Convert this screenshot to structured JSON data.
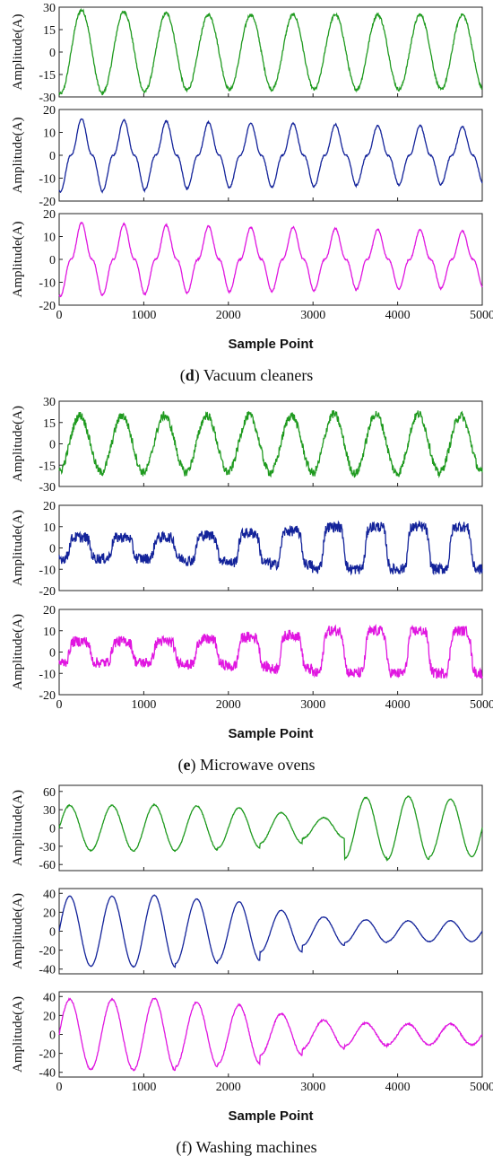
{
  "chart_data": [
    {
      "type": "line",
      "group_caption": {
        "letter": "d",
        "text": "Vacuum cleaners"
      },
      "xlabel": "Sample Point",
      "xlim": [
        0,
        5000
      ],
      "xticks": [
        "0",
        "1000",
        "2000",
        "3000",
        "4000",
        "5000"
      ],
      "panels": [
        {
          "ylabel": "Amplitude(A)",
          "ylim": [
            -30,
            30
          ],
          "yticks": [
            "30",
            "15",
            "0",
            "-15",
            "-30"
          ],
          "color": "#1f9a1f",
          "series": {
            "period": 500,
            "amplitudes": [
              28,
              27,
              26,
              25,
              25,
              25,
              25,
              25,
              25,
              25
            ],
            "shape": "sine",
            "noise": 1.0,
            "phase": 140
          }
        },
        {
          "ylabel": "Amplitude(A)",
          "ylim": [
            -20,
            20
          ],
          "yticks": [
            "20",
            "10",
            "0",
            "-10",
            "-20"
          ],
          "color": "#13239a",
          "series": {
            "period": 500,
            "amplitudes": [
              16,
              15.5,
              15,
              14.5,
              14,
              14,
              13.5,
              13,
              13,
              12.5
            ],
            "shape": "peaky",
            "noise": 0.3,
            "phase": 140
          }
        },
        {
          "ylabel": "Amplitude(A)",
          "ylim": [
            -20,
            20
          ],
          "yticks": [
            "20",
            "10",
            "0",
            "-10",
            "-20"
          ],
          "color": "#e016e0",
          "series": {
            "period": 500,
            "amplitudes": [
              16,
              15.5,
              15,
              14.5,
              14,
              14,
              13.5,
              13,
              13,
              12.5
            ],
            "shape": "peaky",
            "noise": 0.3,
            "phase": 140
          }
        }
      ]
    },
    {
      "type": "line",
      "group_caption": {
        "letter": "e",
        "text": "Microwave ovens"
      },
      "xlabel": "Sample Point",
      "xlim": [
        0,
        5000
      ],
      "xticks": [
        "0",
        "1000",
        "2000",
        "3000",
        "4000",
        "5000"
      ],
      "panels": [
        {
          "ylabel": "Amplitude(A)",
          "ylim": [
            -30,
            30
          ],
          "yticks": [
            "30",
            "15",
            "0",
            "-15",
            "-30"
          ],
          "color": "#1f9a1f",
          "series": {
            "period": 500,
            "amplitudes": [
              20,
              20,
              20,
              20,
              20,
              20,
              21,
              21,
              21,
              20
            ],
            "shape": "sine",
            "noise": 3.0,
            "phase": 120
          }
        },
        {
          "ylabel": "Amplitude(A)",
          "ylim": [
            -20,
            20
          ],
          "yticks": [
            "20",
            "10",
            "0",
            "-10",
            "-20"
          ],
          "color": "#13239a",
          "series": {
            "period": 500,
            "amplitudes": [
              5,
              5,
              5,
              6,
              7,
              8,
              10,
              10,
              10,
              10
            ],
            "shape": "square",
            "noise": 2.5,
            "phase": 120
          }
        },
        {
          "ylabel": "Amplitude(A)",
          "ylim": [
            -20,
            20
          ],
          "yticks": [
            "20",
            "10",
            "0",
            "-10",
            "-20"
          ],
          "color": "#e016e0",
          "series": {
            "period": 500,
            "amplitudes": [
              5,
              5,
              5,
              6,
              7,
              8,
              10,
              10,
              10,
              10
            ],
            "shape": "square",
            "noise": 2.5,
            "phase": 120
          }
        }
      ]
    },
    {
      "type": "line",
      "group_caption": {
        "letter": "",
        "text": "(f) Washing machines"
      },
      "xlabel": "Sample Point",
      "xlim": [
        0,
        5000
      ],
      "xticks": [
        "0",
        "1000",
        "2000",
        "3000",
        "4000",
        "5000"
      ],
      "panels": [
        {
          "ylabel": "Amplitude(A)",
          "ylim": [
            -70,
            70
          ],
          "yticks": [
            "60",
            "30",
            "0",
            "-30",
            "-60"
          ],
          "color": "#1f9a1f",
          "series": {
            "period": 500,
            "amplitudes": [
              37,
              37,
              38,
              36,
              33,
              25,
              17,
              50,
              52,
              47
            ],
            "shape": "sine",
            "noise": 0.8,
            "phase": 0
          }
        },
        {
          "ylabel": "Amplitude(A)",
          "ylim": [
            -45,
            45
          ],
          "yticks": [
            "40",
            "20",
            "0",
            "-20",
            "-40"
          ],
          "color": "#13239a",
          "series": {
            "period": 500,
            "amplitudes": [
              37,
              37,
              38,
              34,
              31,
              22,
              15,
              12,
              11,
              11
            ],
            "shape": "sine",
            "noise": 0.3,
            "phase": 0
          }
        },
        {
          "ylabel": "Amplitude(A)",
          "ylim": [
            -45,
            45
          ],
          "yticks": [
            "40",
            "20",
            "0",
            "-20",
            "-40"
          ],
          "color": "#e016e0",
          "series": {
            "period": 500,
            "amplitudes": [
              37,
              37,
              38,
              34,
              31,
              22,
              15,
              12,
              11,
              11
            ],
            "shape": "sine",
            "noise": 0.8,
            "phase": 0
          }
        }
      ]
    }
  ]
}
